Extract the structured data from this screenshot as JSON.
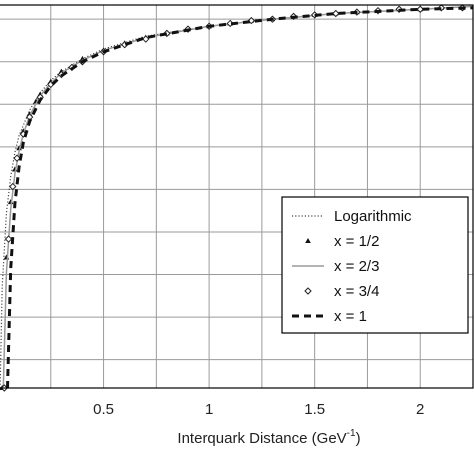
{
  "chart_data": {
    "type": "line",
    "xlabel": "Interquark Distance (GeV",
    "xlabel_superscript": "-1",
    "xlabel_suffix": ")",
    "ylabel": "",
    "xlim": [
      0,
      2.25
    ],
    "ylim": [
      -2.2,
      0.5
    ],
    "x_ticks": [
      0.5,
      1,
      1.5,
      2
    ],
    "x_tick_labels": [
      "0.5",
      "1",
      "1.5",
      "2"
    ],
    "grid": true,
    "legend_position": "lower-right",
    "series": [
      {
        "name": "Logarithmic",
        "style": "dotted",
        "marker": "none",
        "x": [
          0.01,
          0.02,
          0.04,
          0.06,
          0.08,
          0.1,
          0.15,
          0.2,
          0.25,
          0.3,
          0.4,
          0.5,
          0.7,
          1.0,
          1.3,
          1.6,
          2.0,
          2.25
        ],
        "y": [
          -2.2,
          -1.49,
          -0.97,
          -0.71,
          -0.54,
          -0.42,
          -0.24,
          -0.12,
          -0.03,
          0.03,
          0.12,
          0.19,
          0.28,
          0.35,
          0.4,
          0.44,
          0.47,
          0.49
        ]
      },
      {
        "name": "x = 1/2",
        "style": "none",
        "marker": "triangle",
        "x": [
          0.02,
          0.04,
          0.06,
          0.08,
          0.1,
          0.12,
          0.15,
          0.18,
          0.2,
          0.25,
          0.3,
          0.4,
          0.5,
          0.6,
          0.7,
          0.8,
          0.9,
          1.0,
          1.1,
          1.2,
          1.3,
          1.4,
          1.5,
          1.6,
          1.7,
          1.8,
          1.9,
          2.0,
          2.1,
          2.2
        ],
        "y": [
          -2.2,
          -1.28,
          -0.89,
          -0.66,
          -0.51,
          -0.39,
          -0.27,
          -0.18,
          -0.13,
          -0.04,
          0.03,
          0.12,
          0.18,
          0.23,
          0.27,
          0.3,
          0.33,
          0.35,
          0.37,
          0.39,
          0.4,
          0.42,
          0.43,
          0.44,
          0.45,
          0.46,
          0.47,
          0.47,
          0.48,
          0.48
        ]
      },
      {
        "name": "x = 2/3",
        "style": "solid",
        "marker": "none",
        "x": [
          0.025,
          0.04,
          0.06,
          0.08,
          0.1,
          0.12,
          0.15,
          0.2,
          0.25,
          0.3,
          0.4,
          0.5,
          0.7,
          1.0,
          1.3,
          1.6,
          2.0,
          2.25
        ],
        "y": [
          -2.2,
          -1.39,
          -0.94,
          -0.69,
          -0.53,
          -0.41,
          -0.28,
          -0.14,
          -0.05,
          0.02,
          0.11,
          0.18,
          0.27,
          0.35,
          0.4,
          0.44,
          0.47,
          0.49
        ]
      },
      {
        "name": "x = 3/4",
        "style": "none",
        "marker": "diamond",
        "x": [
          0.03,
          0.05,
          0.07,
          0.09,
          0.12,
          0.15,
          0.2,
          0.25,
          0.3,
          0.35,
          0.4,
          0.5,
          0.6,
          0.7,
          0.8,
          0.9,
          1.0,
          1.1,
          1.2,
          1.3,
          1.4,
          1.5,
          1.6,
          1.7,
          1.8,
          1.9,
          2.0,
          2.1,
          2.2
        ],
        "y": [
          -2.2,
          -1.15,
          -0.78,
          -0.58,
          -0.41,
          -0.29,
          -0.15,
          -0.06,
          0.01,
          0.06,
          0.1,
          0.17,
          0.22,
          0.26,
          0.3,
          0.33,
          0.35,
          0.37,
          0.39,
          0.4,
          0.42,
          0.43,
          0.44,
          0.45,
          0.46,
          0.47,
          0.47,
          0.48,
          0.48
        ]
      },
      {
        "name": "x = 1",
        "style": "dashed",
        "marker": "none",
        "x": [
          0.045,
          0.06,
          0.08,
          0.1,
          0.12,
          0.15,
          0.2,
          0.25,
          0.3,
          0.4,
          0.5,
          0.7,
          1.0,
          1.3,
          1.6,
          2.0,
          2.25
        ],
        "y": [
          -2.2,
          -1.36,
          -0.9,
          -0.64,
          -0.47,
          -0.32,
          -0.17,
          -0.07,
          0.0,
          0.1,
          0.17,
          0.27,
          0.35,
          0.4,
          0.44,
          0.47,
          0.48
        ]
      }
    ]
  }
}
